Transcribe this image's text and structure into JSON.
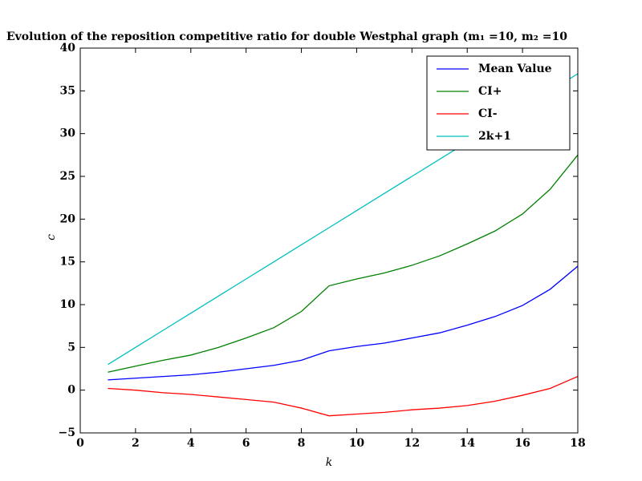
{
  "chart_data": {
    "type": "line",
    "title": "Evolution of the reposition competitive ratio for double Westphal graph (m₁ =10, m₂ =10",
    "x_label": "k",
    "y_label": "c",
    "x": [
      1,
      2,
      3,
      4,
      5,
      6,
      7,
      8,
      9,
      10,
      11,
      12,
      13,
      14,
      15,
      16,
      17,
      18
    ],
    "series": [
      {
        "name": "Mean Value",
        "color": "#0000ff",
        "values": [
          1.2,
          1.4,
          1.6,
          1.8,
          2.1,
          2.5,
          2.9,
          3.5,
          4.6,
          5.1,
          5.5,
          6.1,
          6.7,
          7.6,
          8.6,
          9.9,
          11.8,
          14.5
        ]
      },
      {
        "name": "CI+",
        "color": "#008000",
        "values": [
          2.1,
          2.8,
          3.5,
          4.1,
          5.0,
          6.1,
          7.3,
          9.2,
          12.2,
          13.0,
          13.7,
          14.6,
          15.7,
          17.1,
          18.6,
          20.6,
          23.5,
          27.5
        ]
      },
      {
        "name": "CI-",
        "color": "#ff0000",
        "values": [
          0.2,
          0.0,
          -0.3,
          -0.5,
          -0.8,
          -1.1,
          -1.4,
          -2.1,
          -3.0,
          -2.8,
          -2.6,
          -2.3,
          -2.1,
          -1.8,
          -1.3,
          -0.6,
          0.2,
          1.6
        ]
      },
      {
        "name": "2k+1",
        "color": "#00bfbf",
        "values": [
          3,
          5,
          7,
          9,
          11,
          13,
          15,
          17,
          19,
          21,
          23,
          25,
          27,
          29,
          31,
          33,
          35,
          37
        ]
      }
    ],
    "xlim": [
      0,
      18
    ],
    "xticks": [
      0,
      2,
      4,
      6,
      8,
      10,
      12,
      14,
      16,
      18
    ],
    "ylim": [
      -5,
      40
    ],
    "yticks": [
      {
        "value": -5,
        "label": "−5"
      },
      0,
      5,
      10,
      15,
      20,
      25,
      30,
      35,
      40
    ],
    "legend": "upper right"
  }
}
